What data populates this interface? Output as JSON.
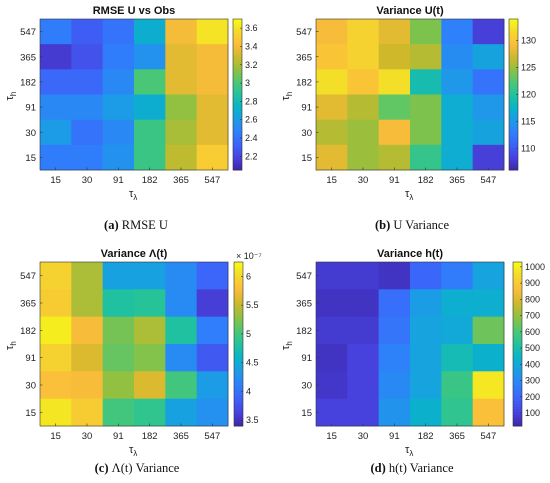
{
  "colormap": [
    "#3e26a8",
    "#4743e0",
    "#3c63f9",
    "#2f80fb",
    "#1c9ce6",
    "#08b4c8",
    "#23c29c",
    "#4dc872",
    "#92c040",
    "#cfb92b",
    "#fcbd3c",
    "#f3da2b",
    "#f9fb15"
  ],
  "chart_data": [
    {
      "type": "heatmap",
      "title": "RMSE U vs Obs",
      "caption_label": "(a)",
      "caption_rest": "RMSE U",
      "x_categories": [
        "15",
        "30",
        "91",
        "182",
        "365",
        "547"
      ],
      "y_categories": [
        "547",
        "365",
        "182",
        "91",
        "30",
        "15"
      ],
      "xlabel": "τλ",
      "ylabel": "τh",
      "zlim": [
        2.05,
        3.7
      ],
      "colorbar_ticks": [
        "2.2",
        "2.4",
        "2.6",
        "2.8",
        "3",
        "3.2",
        "3.4",
        "3.6"
      ],
      "colorbar_multiplier": "",
      "values": [
        [
          2.45,
          2.3,
          2.4,
          2.7,
          3.4,
          3.6
        ],
        [
          2.15,
          2.25,
          2.45,
          2.55,
          3.35,
          3.4
        ],
        [
          2.35,
          2.35,
          2.5,
          3.0,
          3.35,
          3.4
        ],
        [
          2.5,
          2.5,
          2.6,
          2.7,
          3.15,
          3.35
        ],
        [
          2.6,
          2.4,
          2.5,
          2.95,
          3.2,
          3.35
        ],
        [
          2.45,
          2.45,
          2.55,
          2.95,
          3.25,
          3.5
        ]
      ]
    },
    {
      "type": "heatmap",
      "title": "Variance U(t)",
      "caption_label": "(b)",
      "caption_rest": "U Variance",
      "x_categories": [
        "15",
        "30",
        "91",
        "182",
        "365",
        "547"
      ],
      "y_categories": [
        "547",
        "365",
        "182",
        "91",
        "30",
        "15"
      ],
      "xlabel": "τλ",
      "ylabel": "τh",
      "zlim": [
        106,
        134
      ],
      "colorbar_ticks": [
        "110",
        "115",
        "120",
        "125",
        "130"
      ],
      "colorbar_multiplier": "",
      "values": [
        [
          129,
          131,
          128,
          124,
          113,
          108
        ],
        [
          130,
          131,
          127,
          126,
          114,
          116
        ],
        [
          132,
          130,
          132,
          119,
          115,
          112
        ],
        [
          128,
          126,
          123,
          124,
          117,
          115
        ],
        [
          126,
          125,
          129,
          124,
          117,
          116
        ],
        [
          128,
          125,
          126,
          121,
          117,
          108
        ]
      ]
    },
    {
      "type": "heatmap",
      "title": "Variance Λ(t)",
      "caption_label": "(c)",
      "caption_rest": "Λ(t) Variance",
      "x_categories": [
        "15",
        "30",
        "91",
        "182",
        "365",
        "547"
      ],
      "y_categories": [
        "547",
        "365",
        "182",
        "91",
        "30",
        "15"
      ],
      "xlabel": "τλ",
      "ylabel": "τh",
      "zlim": [
        3.4,
        6.25
      ],
      "colorbar_ticks": [
        "3.5",
        "4",
        "4.5",
        "5",
        "5.5",
        "6"
      ],
      "colorbar_multiplier": "× 10⁻⁷",
      "values": [
        [
          5.95,
          5.4,
          4.4,
          4.4,
          4.2,
          3.9
        ],
        [
          5.9,
          5.4,
          4.8,
          4.85,
          4.2,
          3.6
        ],
        [
          6.15,
          5.75,
          5.2,
          5.4,
          4.8,
          4.1
        ],
        [
          5.95,
          5.6,
          5.15,
          5.25,
          4.2,
          3.8
        ],
        [
          5.8,
          5.75,
          5.3,
          5.6,
          5.0,
          4.35
        ],
        [
          6.1,
          5.9,
          5.0,
          4.9,
          4.4,
          4.25
        ]
      ]
    },
    {
      "type": "heatmap",
      "title": "Variance h(t)",
      "caption_label": "(d)",
      "caption_rest": "h(t) Variance",
      "x_categories": [
        "15",
        "30",
        "91",
        "182",
        "365",
        "547"
      ],
      "y_categories": [
        "547",
        "365",
        "182",
        "91",
        "30",
        "15"
      ],
      "xlabel": "τλ",
      "ylabel": "τh",
      "zlim": [
        20,
        1030
      ],
      "colorbar_ticks": [
        "100",
        "200",
        "300",
        "400",
        "500",
        "600",
        "700",
        "800",
        "900",
        "1000"
      ],
      "colorbar_multiplier": "",
      "values": [
        [
          80,
          80,
          60,
          200,
          260,
          380
        ],
        [
          60,
          60,
          220,
          360,
          420,
          420
        ],
        [
          80,
          80,
          240,
          380,
          400,
          650
        ],
        [
          60,
          100,
          280,
          380,
          480,
          430
        ],
        [
          70,
          100,
          300,
          380,
          570,
          980
        ],
        [
          100,
          100,
          330,
          430,
          550,
          870
        ]
      ]
    }
  ]
}
